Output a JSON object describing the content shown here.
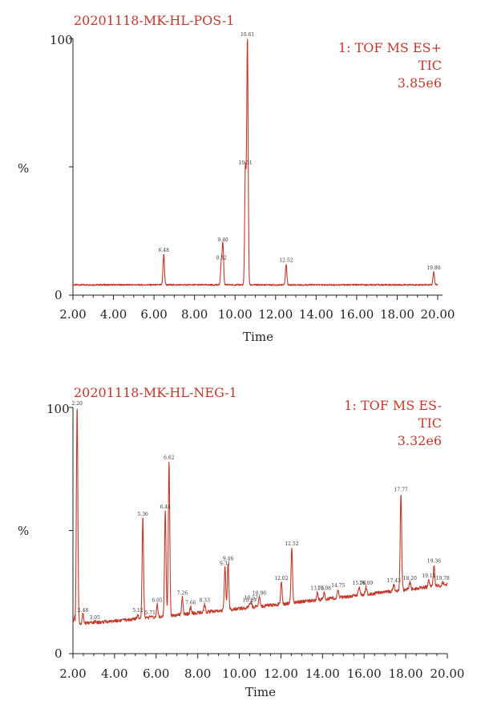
{
  "chart_data": [
    {
      "type": "line",
      "sample_name": "20201118-MK-HL-POS-1",
      "info": [
        "1: TOF MS ES+",
        "TIC",
        "3.85e6"
      ],
      "xlabel": "Time",
      "ylabel": "%",
      "xlim": [
        2.0,
        20.0
      ],
      "ylim": [
        0,
        100
      ],
      "x_ticks": [
        "2.00",
        "4.00",
        "6.00",
        "8.00",
        "10.00",
        "12.00",
        "14.00",
        "16.00",
        "18.00",
        "20.00"
      ],
      "y_ticks": [
        "0",
        "100"
      ],
      "baseline": 4,
      "peaks": [
        {
          "label": "6.48",
          "rt": 6.48,
          "height": 16
        },
        {
          "label": "9.32",
          "rt": 9.32,
          "height": 13
        },
        {
          "label": "9.40",
          "rt": 9.4,
          "height": 20
        },
        {
          "label": "10.51",
          "rt": 10.51,
          "height": 50
        },
        {
          "label": "10.61",
          "rt": 10.61,
          "height": 100
        },
        {
          "label": "12.52",
          "rt": 12.52,
          "height": 12
        },
        {
          "label": "19.80",
          "rt": 19.8,
          "height": 9
        }
      ]
    },
    {
      "type": "line",
      "sample_name": "20201118-MK-HL-NEG-1",
      "info": [
        "1: TOF MS ES-",
        "TIC",
        "3.32e6"
      ],
      "xlabel": "Time",
      "ylabel": "%",
      "xlim": [
        2.0,
        20.0
      ],
      "ylim": [
        0,
        100
      ],
      "x_ticks": [
        "2.00",
        "4.00",
        "6.00",
        "8.00",
        "10.00",
        "12.00",
        "14.00",
        "16.00",
        "18.00",
        "20.00"
      ],
      "y_ticks": [
        "0",
        "100"
      ],
      "baseline_start": 12,
      "baseline_end": 28,
      "peaks": [
        {
          "label": "2.20",
          "rt": 2.2,
          "height": 100
        },
        {
          "label": "2.48",
          "rt": 2.48,
          "height": 16
        },
        {
          "label": "3.05",
          "rt": 3.05,
          "height": 13
        },
        {
          "label": "5.12",
          "rt": 5.12,
          "height": 16
        },
        {
          "label": "5.36",
          "rt": 5.36,
          "height": 55
        },
        {
          "label": "5.71",
          "rt": 5.71,
          "height": 15
        },
        {
          "label": "6.05",
          "rt": 6.05,
          "height": 20
        },
        {
          "label": "6.44",
          "rt": 6.44,
          "height": 58
        },
        {
          "label": "6.62",
          "rt": 6.62,
          "height": 78
        },
        {
          "label": "7.26",
          "rt": 7.26,
          "height": 23
        },
        {
          "label": "7.66",
          "rt": 7.66,
          "height": 19
        },
        {
          "label": "8.33",
          "rt": 8.33,
          "height": 20
        },
        {
          "label": "9.31",
          "rt": 9.31,
          "height": 35
        },
        {
          "label": "9.46",
          "rt": 9.46,
          "height": 37
        },
        {
          "label": "10.49",
          "rt": 10.49,
          "height": 20
        },
        {
          "label": "10.57",
          "rt": 10.57,
          "height": 21
        },
        {
          "label": "10.96",
          "rt": 10.96,
          "height": 23
        },
        {
          "label": "12.02",
          "rt": 12.02,
          "height": 29
        },
        {
          "label": "12.52",
          "rt": 12.52,
          "height": 43
        },
        {
          "label": "13.75",
          "rt": 13.75,
          "height": 25
        },
        {
          "label": "14.08",
          "rt": 14.08,
          "height": 25
        },
        {
          "label": "14.75",
          "rt": 14.75,
          "height": 26
        },
        {
          "label": "15.76",
          "rt": 15.76,
          "height": 27
        },
        {
          "label": "16.09",
          "rt": 16.09,
          "height": 27
        },
        {
          "label": "17.43",
          "rt": 17.43,
          "height": 28
        },
        {
          "label": "17.77",
          "rt": 17.77,
          "height": 65
        },
        {
          "label": "18.20",
          "rt": 18.2,
          "height": 29
        },
        {
          "label": "19.11",
          "rt": 19.11,
          "height": 30
        },
        {
          "label": "19.36",
          "rt": 19.36,
          "height": 36
        },
        {
          "label": "19.78",
          "rt": 19.78,
          "height": 29
        }
      ]
    }
  ]
}
